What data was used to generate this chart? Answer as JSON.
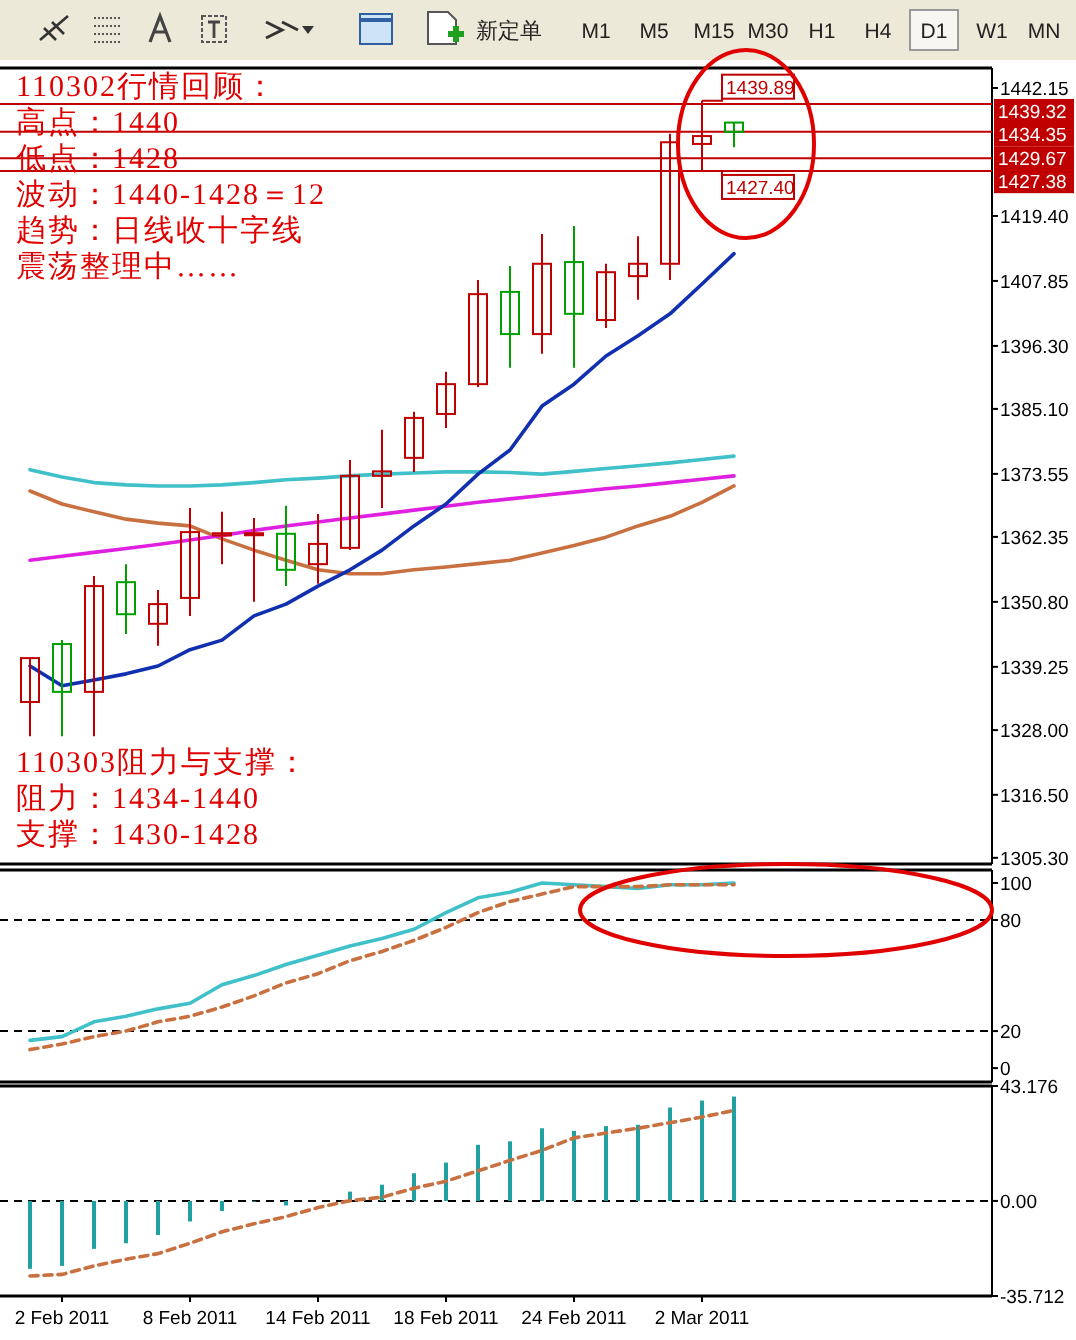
{
  "chart_data": [
    {
      "type": "other",
      "annotations": [
        "新定单",
        "M1",
        "M5",
        "M15",
        "M30",
        "H1",
        "H4",
        "D1",
        "W1",
        "MN"
      ]
    },
    {
      "type": "candlestick",
      "tick_labels": "y",
      "categories": [
        null,
        null,
        null,
        null,
        null,
        null,
        null,
        null,
        null,
        null,
        null,
        null,
        null,
        null,
        null,
        null,
        null,
        null,
        null,
        null,
        null,
        null,
        null
      ],
      "ohlc": [
        [
          1333.0,
          1340.8,
          1326.9,
          1340.8
        ],
        [
          1343.3,
          1344.0,
          1326.9,
          1334.8
        ],
        [
          1334.8,
          1355.4,
          1326.9,
          1353.6
        ],
        [
          1354.3,
          1357.5,
          1345.1,
          1348.6
        ],
        [
          1346.9,
          1352.9,
          1343.0,
          1350.4
        ],
        [
          1351.5,
          1367.5,
          1348.3,
          1363.2
        ],
        [
          1362.6,
          1366.8,
          1357.5,
          1363.0
        ],
        [
          1362.8,
          1365.7,
          1350.8,
          1363.0
        ],
        [
          1362.9,
          1367.9,
          1353.6,
          1356.5
        ],
        [
          1357.5,
          1366.4,
          1354.0,
          1361.1
        ],
        [
          1360.4,
          1376.0,
          1360.0,
          1373.2
        ],
        [
          1373.2,
          1381.4,
          1367.5,
          1374.0
        ],
        [
          1376.4,
          1384.6,
          1373.9,
          1383.5
        ],
        [
          1384.2,
          1391.7,
          1381.7,
          1389.5
        ],
        [
          1389.5,
          1408.0,
          1389.0,
          1405.5
        ],
        [
          1405.9,
          1410.5,
          1392.4,
          1398.4
        ],
        [
          1398.4,
          1416.2,
          1394.9,
          1410.9
        ],
        [
          1411.2,
          1417.6,
          1392.4,
          1402.0
        ],
        [
          1400.9,
          1410.9,
          1399.5,
          1409.4
        ],
        [
          1408.7,
          1415.8,
          1404.5,
          1410.9
        ],
        [
          1410.9,
          1434.0,
          1408.0,
          1432.5
        ],
        [
          1432.2,
          1439.89,
          1427.4,
          1433.6
        ],
        [
          1436.0,
          1436.0,
          1431.6,
          1434.35
        ]
      ],
      "colors": [
        "#c00000",
        "#00a000",
        "#c00000",
        "#00a000",
        "#c00000",
        "#c00000",
        "#c00000",
        "#c00000",
        "#00a000",
        "#c00000",
        "#c00000",
        "#c00000",
        "#c00000",
        "#c00000",
        "#c00000",
        "#00a000",
        "#c00000",
        "#00a000",
        "#c00000",
        "#c00000",
        "#c00000",
        "#c00000",
        "#00a000"
      ],
      "series": [
        {
          "type": "line",
          "color": "#40c0c8",
          "values": [
            1374.3,
            1373.0,
            1372.0,
            1371.6,
            1371.4,
            1371.4,
            1371.6,
            1372.0,
            1372.5,
            1372.8,
            1373.2,
            1373.5,
            1373.7,
            1373.9,
            1373.9,
            1373.8,
            1373.5,
            1374.0,
            1374.5,
            1375.0,
            1375.5,
            1376.1,
            1376.7
          ]
        },
        {
          "type": "line",
          "color": "#c87040",
          "values": [
            1370.5,
            1368.2,
            1366.8,
            1365.5,
            1364.8,
            1364.3,
            1362.0,
            1360.0,
            1358.2,
            1356.5,
            1355.8,
            1355.8,
            1356.5,
            1357.0,
            1357.6,
            1358.2,
            1359.5,
            1360.8,
            1362.3,
            1364.3,
            1366.0,
            1368.5,
            1371.4
          ]
        },
        {
          "type": "line",
          "color": "#e020e0",
          "values": [
            1358.2,
            1358.9,
            1359.6,
            1360.3,
            1361.0,
            1361.8,
            1362.6,
            1363.5,
            1364.3,
            1365.0,
            1365.7,
            1366.4,
            1367.1,
            1367.8,
            1368.5,
            1369.1,
            1369.7,
            1370.3,
            1370.9,
            1371.4,
            1372.0,
            1372.6,
            1373.2
          ]
        },
        {
          "type": "line",
          "color": "#1030b0",
          "values": [
            1339.4,
            1335.9,
            1336.9,
            1338.0,
            1339.4,
            1342.3,
            1344.0,
            1348.3,
            1350.4,
            1353.6,
            1356.5,
            1360.0,
            1364.3,
            1368.2,
            1373.5,
            1377.8,
            1385.6,
            1389.5,
            1394.5,
            1398.1,
            1402.0,
            1407.3,
            1412.7
          ]
        }
      ],
      "ylim": [
        1304.2,
        1445.7
      ],
      "yticks": [
        {
          "value": 1442.15,
          "label": "1442.15"
        },
        {
          "value": 1419.4,
          "label": "1419.40"
        },
        {
          "value": 1407.85,
          "label": "1407.85"
        },
        {
          "value": 1396.3,
          "label": "1396.30"
        },
        {
          "value": 1385.1,
          "label": "1385.10"
        },
        {
          "value": 1373.55,
          "label": "1373.55"
        },
        {
          "value": 1362.35,
          "label": "1362.35"
        },
        {
          "value": 1350.8,
          "label": "1350.80"
        },
        {
          "value": 1339.25,
          "label": "1339.25"
        },
        {
          "value": 1328,
          "label": "1328.00"
        },
        {
          "value": 1316.5,
          "label": "1316.50"
        },
        {
          "value": 1305.3,
          "label": "1305.30"
        }
      ],
      "ref_lines": [
        {
          "axis": "y",
          "value": 1439.32,
          "label": "1439.32",
          "color": "#c00000"
        },
        {
          "axis": "y",
          "value": 1434.35,
          "label": "1434.35",
          "color": "#c00000"
        },
        {
          "axis": "y",
          "value": 1429.67,
          "label": "1429.67",
          "color": "#c00000"
        },
        {
          "axis": "y",
          "value": 1427.38,
          "label": "1427.38",
          "color": "#c00000"
        }
      ],
      "annotations": [
        "110302行情回顾：",
        "高点：1440",
        "低点：1428",
        "波动：1440-1428＝12",
        "趋势：日线收十字线",
        "震荡整理中……",
        "110303阻力与支撑：",
        "阻力：1434-1440",
        "支撑：1430-1428",
        {
          "text": "1439.89",
          "y": 1439.89
        },
        {
          "text": "1427.40",
          "y": 1427.4
        }
      ]
    },
    {
      "type": "line",
      "tick_labels": "y",
      "categories": [
        null,
        null,
        null,
        null,
        null,
        null,
        null,
        null,
        null,
        null,
        null,
        null,
        null,
        null,
        null,
        null,
        null,
        null,
        null,
        null,
        null,
        null,
        null
      ],
      "series": [
        {
          "color": "#40c0c8",
          "values": [
            15,
            17,
            25,
            28,
            32,
            35,
            45,
            50,
            56,
            61,
            66,
            70,
            75,
            84,
            92,
            95,
            100,
            99,
            98,
            97,
            99,
            99,
            100
          ]
        },
        {
          "color": "#c87040",
          "line_style": "dashed",
          "values": [
            10,
            13,
            17,
            20,
            25,
            28,
            33,
            39,
            46,
            51,
            58,
            63,
            69,
            76,
            84,
            90,
            94,
            98,
            98,
            98,
            99,
            99,
            99
          ]
        }
      ],
      "ylim": [
        -7.5,
        107
      ],
      "yticks": [
        100,
        80,
        20,
        0
      ],
      "ref_lines": [
        {
          "axis": "y",
          "value": 80,
          "color": "#000000",
          "line_style": "dashed"
        },
        {
          "axis": "y",
          "value": 20,
          "color": "#000000",
          "line_style": "dashed"
        }
      ]
    },
    {
      "type": "bar",
      "categories": [
        null,
        "2 Feb 2011",
        null,
        null,
        null,
        "8 Feb 2011",
        null,
        null,
        null,
        "14 Feb 2011",
        null,
        null,
        null,
        "18 Feb 2011",
        null,
        null,
        null,
        "24 Feb 2011",
        null,
        null,
        null,
        "2 Mar 2011",
        null
      ],
      "series": [
        {
          "color": "#20a0a0",
          "values": [
            -25.5,
            -24.4,
            -18.0,
            -15.9,
            -12.8,
            -7.7,
            -3.8,
            -0.3,
            -1.7,
            null,
            3.5,
            6.1,
            10.4,
            14.4,
            21.1,
            22.4,
            27.3,
            26.3,
            28.1,
            28.6,
            35.1,
            37.7,
            39.2
          ]
        },
        {
          "type": "line",
          "color": "#c87040",
          "line_style": "dashed",
          "values": [
            -28.2,
            -27.6,
            -24.4,
            -21.9,
            -19.8,
            -15.9,
            -11.6,
            -8.6,
            -5.9,
            -2.5,
            0.1,
            1.4,
            4.8,
            7.4,
            11.3,
            15.2,
            19.0,
            23.7,
            25.5,
            27.3,
            29.4,
            31.5,
            34.0
          ]
        }
      ],
      "ylim": [
        -35.712,
        43.176
      ],
      "yticks": [
        43.176,
        {
          "value": 0,
          "label": "0.00"
        },
        -35.712
      ],
      "ref_lines": [
        {
          "axis": "y",
          "value": 0,
          "color": "#000000",
          "line_style": "dashed"
        }
      ]
    }
  ]
}
